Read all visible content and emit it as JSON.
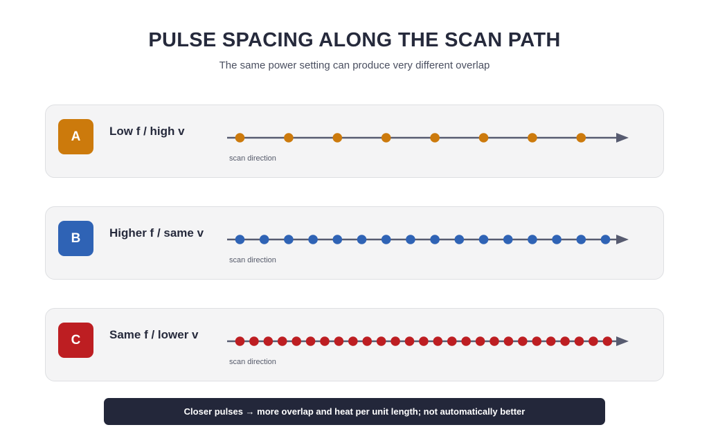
{
  "title": "PULSE SPACING ALONG THE SCAN PATH",
  "subtitle": "The same power setting can produce very different overlap",
  "rows": [
    {
      "badge": "A",
      "label": "Low f / high v",
      "caption": "scan direction",
      "color": "#cc7a0c",
      "pulse_count": 8,
      "relative_spacing": 1.0
    },
    {
      "badge": "B",
      "label": "Higher f / same v",
      "caption": "scan direction",
      "color": "#2f63b5",
      "pulse_count": 16,
      "relative_spacing": 0.5
    },
    {
      "badge": "C",
      "label": "Same f / lower v",
      "caption": "scan direction",
      "color": "#bd1e22",
      "pulse_count": 27,
      "relative_spacing": 0.29
    }
  ],
  "footer": "Closer pulses → more overlap and heat per unit length; not automatically better",
  "colors": {
    "line": "#575b70",
    "panel_bg": "#f4f4f5",
    "footer_bg": "#23273a",
    "text": "#262a3c"
  }
}
